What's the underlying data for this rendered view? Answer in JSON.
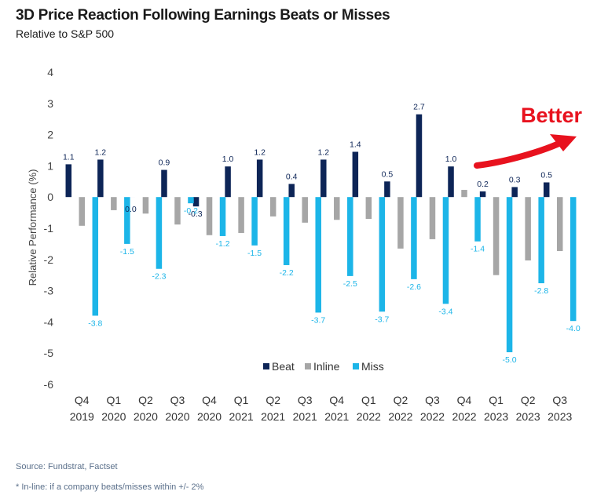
{
  "colors": {
    "beat": "#0d2557",
    "inline": "#a6a6a6",
    "miss": "#1cb5e8",
    "annotation": "#e8121e"
  },
  "chart_data": {
    "type": "bar",
    "title": "3D Price Reaction Following Earnings Beats or Misses",
    "subtitle": "Relative to S&P 500",
    "ylabel": "Relative Performance (%)",
    "xlabel": "",
    "ylim": [
      -6,
      4
    ],
    "yticks": [
      4,
      3,
      2,
      1,
      0,
      -1,
      -2,
      -3,
      -4,
      -5,
      -6
    ],
    "categories": [
      [
        "Q4",
        "2019"
      ],
      [
        "Q1",
        "2020"
      ],
      [
        "Q2",
        "2020"
      ],
      [
        "Q3",
        "2020"
      ],
      [
        "Q4",
        "2020"
      ],
      [
        "Q1",
        "2021"
      ],
      [
        "Q2",
        "2021"
      ],
      [
        "Q3",
        "2021"
      ],
      [
        "Q4",
        "2021"
      ],
      [
        "Q1",
        "2022"
      ],
      [
        "Q2",
        "2022"
      ],
      [
        "Q3",
        "2022"
      ],
      [
        "Q4",
        "2022"
      ],
      [
        "Q1",
        "2023"
      ],
      [
        "Q2",
        "2023"
      ],
      [
        "Q3",
        "2023"
      ]
    ],
    "series": [
      {
        "name": "Beat",
        "key": "beat",
        "values": [
          1.05,
          1.2,
          0.0,
          0.87,
          -0.3,
          0.98,
          1.2,
          0.42,
          1.2,
          1.45,
          0.5,
          2.65,
          0.98,
          0.18,
          0.32,
          0.47
        ],
        "labels": [
          "1.1",
          "1.2",
          "0.0",
          "0.9",
          "-0.3",
          "1.0",
          "1.2",
          "0.4",
          "1.2",
          "1.4",
          "0.5",
          "2.7",
          "1.0",
          "0.2",
          "0.3",
          "0.5"
        ]
      },
      {
        "name": "Inline",
        "key": "inline",
        "values": [
          -0.92,
          -0.42,
          -0.53,
          -0.88,
          -1.22,
          -1.15,
          -0.62,
          -0.82,
          -0.73,
          -0.7,
          -1.65,
          -1.35,
          0.23,
          -2.5,
          -2.03,
          -1.73
        ],
        "labels": null
      },
      {
        "name": "Miss",
        "key": "miss",
        "values": [
          -3.8,
          -1.5,
          -2.3,
          -0.2,
          -1.25,
          -1.55,
          -2.18,
          -3.7,
          -2.53,
          -3.67,
          -2.63,
          -3.42,
          -1.42,
          -4.97,
          -2.76,
          -3.97
        ],
        "labels": [
          "-3.8",
          "-1.5",
          "-2.3",
          "-0.2",
          "-1.2",
          "-1.5",
          "-2.2",
          "-3.7",
          "-2.5",
          "-3.7",
          "-2.6",
          "-3.4",
          "-1.4",
          "-5.0",
          "-2.8",
          "-4.0"
        ]
      }
    ],
    "legend": {
      "position": "bottom-right",
      "items": [
        "Beat",
        "Inline",
        "Miss"
      ]
    },
    "annotation": {
      "text": "Better"
    }
  },
  "footer": {
    "source": "Source: Fundstrat, Factset",
    "note": "* In-line: if a company beats/misses within +/- 2%"
  }
}
